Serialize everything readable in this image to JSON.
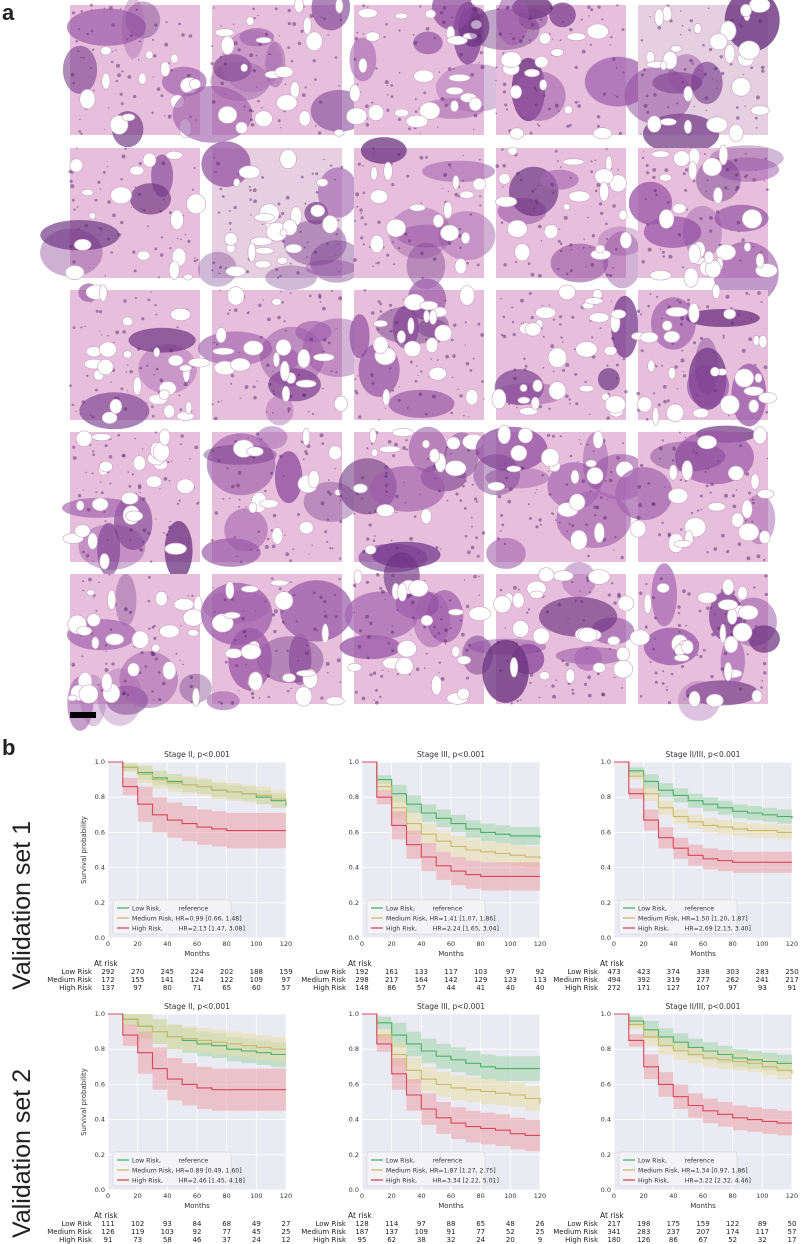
{
  "figure": {
    "panel_a_label": "a",
    "panel_b_label": "b",
    "row_labels": [
      "Validation set 1",
      "Validation set 2"
    ],
    "at_risk_label": "At risk",
    "group_labels": [
      "Low Risk",
      "Medium Risk",
      "High Risk"
    ],
    "colors": {
      "low": "#4daf6b",
      "medium": "#c9b96a",
      "high": "#d9475a",
      "low_band": "#9fd3a9",
      "medium_band": "#e8dcaa",
      "high_band": "#eba0a8",
      "plot_bg": "#eaeaf2"
    }
  },
  "tiles": {
    "count": 25,
    "description_icon": "histology-tile-icon"
  },
  "chart_data": [
    {
      "type": "line",
      "title": "Stage II, p<0.001",
      "xlabel": "Months",
      "ylabel": "Survival probability",
      "xlim": [
        0,
        120
      ],
      "ylim": [
        0,
        1
      ],
      "xticks": [
        "0",
        "20",
        "40",
        "60",
        "80",
        "100",
        "120"
      ],
      "yticks": [
        "0.0",
        "0.2",
        "0.4",
        "0.6",
        "0.8",
        "1.0"
      ],
      "legend": [
        "Low Risk,         reference",
        "Medium Risk, HR=0.99 [0.66, 1.48]",
        "High Risk,        HR=2.13 [1.47, 3.08]"
      ],
      "series": [
        {
          "name": "Low Risk",
          "x": [
            0,
            10,
            20,
            30,
            40,
            50,
            60,
            70,
            80,
            90,
            100,
            110,
            120
          ],
          "y": [
            1,
            0.97,
            0.94,
            0.91,
            0.89,
            0.87,
            0.86,
            0.84,
            0.83,
            0.82,
            0.8,
            0.78,
            0.75
          ],
          "band": 0.04
        },
        {
          "name": "Medium Risk",
          "x": [
            0,
            10,
            20,
            30,
            40,
            50,
            60,
            70,
            80,
            90,
            100,
            110,
            120
          ],
          "y": [
            1,
            0.97,
            0.93,
            0.9,
            0.88,
            0.87,
            0.86,
            0.84,
            0.83,
            0.82,
            0.81,
            0.79,
            0.77
          ],
          "band": 0.05
        },
        {
          "name": "High Risk",
          "x": [
            0,
            10,
            20,
            30,
            40,
            50,
            60,
            70,
            80,
            90,
            100,
            110,
            120
          ],
          "y": [
            1,
            0.86,
            0.76,
            0.7,
            0.67,
            0.65,
            0.63,
            0.62,
            0.61,
            0.61,
            0.61,
            0.61,
            0.61
          ],
          "band": 0.1
        }
      ],
      "at_risk": {
        "times": [
          0,
          20,
          40,
          60,
          80,
          100,
          120
        ],
        "rows": [
          [
            292,
            270,
            245,
            224,
            202,
            188,
            159
          ],
          [
            172,
            155,
            141,
            124,
            122,
            109,
            97
          ],
          [
            137,
            97,
            80,
            71,
            65,
            60,
            57
          ]
        ]
      }
    },
    {
      "type": "line",
      "title": "Stage III, p<0.001",
      "xlabel": "Months",
      "ylabel": "",
      "xlim": [
        0,
        120
      ],
      "ylim": [
        0,
        1
      ],
      "xticks": [
        "0",
        "20",
        "40",
        "60",
        "80",
        "100",
        "120"
      ],
      "yticks": [
        "0.0",
        "0.2",
        "0.4",
        "0.6",
        "0.8",
        "1.0"
      ],
      "legend": [
        "Low Risk,         reference",
        "Medium Risk, HR=1.41 [1.07, 1.86]",
        "High Risk,        HR=2.24 [1.65, 3.04]"
      ],
      "series": [
        {
          "name": "Low Risk",
          "x": [
            0,
            10,
            20,
            30,
            40,
            50,
            60,
            70,
            80,
            90,
            100,
            110,
            120
          ],
          "y": [
            1,
            0.9,
            0.82,
            0.76,
            0.71,
            0.68,
            0.65,
            0.62,
            0.6,
            0.59,
            0.58,
            0.58,
            0.57
          ],
          "band": 0.05
        },
        {
          "name": "Medium Risk",
          "x": [
            0,
            10,
            20,
            30,
            40,
            50,
            60,
            70,
            80,
            90,
            100,
            110,
            120
          ],
          "y": [
            1,
            0.86,
            0.74,
            0.65,
            0.59,
            0.55,
            0.52,
            0.5,
            0.49,
            0.48,
            0.47,
            0.46,
            0.45
          ],
          "band": 0.06
        },
        {
          "name": "High Risk",
          "x": [
            0,
            10,
            20,
            30,
            40,
            50,
            60,
            70,
            80,
            90,
            100,
            110,
            120
          ],
          "y": [
            1,
            0.8,
            0.64,
            0.53,
            0.46,
            0.41,
            0.38,
            0.36,
            0.35,
            0.35,
            0.35,
            0.35,
            0.35
          ],
          "band": 0.08
        }
      ],
      "at_risk": {
        "times": [
          0,
          20,
          40,
          60,
          80,
          100,
          120
        ],
        "rows": [
          [
            192,
            161,
            133,
            117,
            103,
            97,
            92
          ],
          [
            298,
            217,
            164,
            142,
            129,
            123,
            113
          ],
          [
            148,
            86,
            57,
            44,
            41,
            40,
            40
          ]
        ]
      }
    },
    {
      "type": "line",
      "title": "Stage II/III, p<0.001",
      "xlabel": "Months",
      "ylabel": "",
      "xlim": [
        0,
        120
      ],
      "ylim": [
        0,
        1
      ],
      "xticks": [
        "0",
        "20",
        "40",
        "60",
        "80",
        "100",
        "120"
      ],
      "yticks": [
        "0.0",
        "0.2",
        "0.4",
        "0.6",
        "0.8",
        "1.0"
      ],
      "legend": [
        "Low Risk,         reference",
        "Medium Risk, HR=1.50 [1.20, 1.87]",
        "High Risk,        HR=2.69 [2.13, 3.40]"
      ],
      "series": [
        {
          "name": "Low Risk",
          "x": [
            0,
            10,
            20,
            30,
            40,
            50,
            60,
            70,
            80,
            90,
            100,
            110,
            120
          ],
          "y": [
            1,
            0.95,
            0.89,
            0.84,
            0.81,
            0.78,
            0.76,
            0.74,
            0.72,
            0.71,
            0.7,
            0.69,
            0.68
          ],
          "band": 0.04
        },
        {
          "name": "Medium Risk",
          "x": [
            0,
            10,
            20,
            30,
            40,
            50,
            60,
            70,
            80,
            90,
            100,
            110,
            120
          ],
          "y": [
            1,
            0.92,
            0.82,
            0.74,
            0.69,
            0.66,
            0.64,
            0.63,
            0.62,
            0.61,
            0.61,
            0.6,
            0.6
          ],
          "band": 0.04
        },
        {
          "name": "High Risk",
          "x": [
            0,
            10,
            20,
            30,
            40,
            50,
            60,
            70,
            80,
            90,
            100,
            110,
            120
          ],
          "y": [
            1,
            0.82,
            0.67,
            0.57,
            0.51,
            0.47,
            0.45,
            0.44,
            0.43,
            0.43,
            0.43,
            0.43,
            0.43
          ],
          "band": 0.06
        }
      ],
      "at_risk": {
        "times": [
          0,
          20,
          40,
          60,
          80,
          100,
          120
        ],
        "rows": [
          [
            473,
            423,
            374,
            338,
            303,
            283,
            250
          ],
          [
            494,
            392,
            319,
            277,
            262,
            241,
            217
          ],
          [
            272,
            171,
            127,
            107,
            97,
            93,
            91
          ]
        ]
      }
    },
    {
      "type": "line",
      "title": "Stage II, p<0.001",
      "xlabel": "Months",
      "ylabel": "Survival probability",
      "xlim": [
        0,
        120
      ],
      "ylim": [
        0,
        1
      ],
      "xticks": [
        "0",
        "20",
        "40",
        "60",
        "80",
        "100",
        "120"
      ],
      "yticks": [
        "0.0",
        "0.2",
        "0.4",
        "0.6",
        "0.8",
        "1.0"
      ],
      "legend": [
        "Low Risk,         reference",
        "Medium Risk, HR=0.89 [0.49, 1.60]",
        "High Risk,        HR=2.46 [1.45, 4.18]"
      ],
      "series": [
        {
          "name": "Low Risk",
          "x": [
            0,
            10,
            20,
            30,
            40,
            50,
            60,
            70,
            80,
            90,
            100,
            110,
            120
          ],
          "y": [
            1,
            0.97,
            0.93,
            0.9,
            0.87,
            0.85,
            0.83,
            0.82,
            0.8,
            0.79,
            0.78,
            0.77,
            0.77
          ],
          "band": 0.07
        },
        {
          "name": "Medium Risk",
          "x": [
            0,
            10,
            20,
            30,
            40,
            50,
            60,
            70,
            80,
            90,
            100,
            110,
            120
          ],
          "y": [
            1,
            0.97,
            0.93,
            0.9,
            0.87,
            0.86,
            0.85,
            0.84,
            0.83,
            0.82,
            0.81,
            0.8,
            0.8
          ],
          "band": 0.07
        },
        {
          "name": "High Risk",
          "x": [
            0,
            10,
            20,
            30,
            40,
            50,
            60,
            70,
            80,
            90,
            100,
            110,
            120
          ],
          "y": [
            1,
            0.88,
            0.78,
            0.69,
            0.63,
            0.6,
            0.58,
            0.57,
            0.57,
            0.57,
            0.57,
            0.57,
            0.57
          ],
          "band": 0.12
        }
      ],
      "at_risk": {
        "times": [
          0,
          20,
          40,
          60,
          80,
          100,
          120
        ],
        "rows": [
          [
            111,
            102,
            93,
            84,
            68,
            49,
            27
          ],
          [
            126,
            119,
            103,
            92,
            77,
            45,
            25
          ],
          [
            91,
            73,
            58,
            46,
            37,
            24,
            12
          ]
        ]
      }
    },
    {
      "type": "line",
      "title": "Stage III, p<0.001",
      "xlabel": "Months",
      "ylabel": "",
      "xlim": [
        0,
        120
      ],
      "ylim": [
        0,
        1
      ],
      "xticks": [
        "0",
        "20",
        "40",
        "60",
        "80",
        "100",
        "120"
      ],
      "yticks": [
        "0.0",
        "0.2",
        "0.4",
        "0.6",
        "0.8",
        "1.0"
      ],
      "legend": [
        "Low Risk,         reference",
        "Medium Risk, HR=1.87 [1.27, 2.75]",
        "High Risk,        HR=3.34 [2.22, 5.01]"
      ],
      "series": [
        {
          "name": "Low Risk",
          "x": [
            0,
            10,
            20,
            30,
            40,
            50,
            60,
            70,
            80,
            90,
            100,
            110,
            120
          ],
          "y": [
            1,
            0.95,
            0.88,
            0.83,
            0.79,
            0.76,
            0.74,
            0.72,
            0.7,
            0.69,
            0.69,
            0.69,
            0.69
          ],
          "band": 0.07
        },
        {
          "name": "Medium Risk",
          "x": [
            0,
            10,
            20,
            30,
            40,
            50,
            60,
            70,
            80,
            90,
            100,
            110,
            120
          ],
          "y": [
            1,
            0.88,
            0.77,
            0.68,
            0.63,
            0.6,
            0.58,
            0.57,
            0.56,
            0.55,
            0.54,
            0.52,
            0.49
          ],
          "band": 0.07
        },
        {
          "name": "High Risk",
          "x": [
            0,
            10,
            20,
            30,
            40,
            50,
            60,
            70,
            80,
            90,
            100,
            110,
            120
          ],
          "y": [
            1,
            0.83,
            0.66,
            0.54,
            0.46,
            0.41,
            0.38,
            0.36,
            0.35,
            0.34,
            0.32,
            0.31,
            0.31
          ],
          "band": 0.09
        }
      ],
      "at_risk": {
        "times": [
          0,
          20,
          40,
          60,
          80,
          100,
          120
        ],
        "rows": [
          [
            128,
            114,
            97,
            88,
            65,
            48,
            26
          ],
          [
            187,
            137,
            109,
            91,
            77,
            52,
            25
          ],
          [
            95,
            62,
            38,
            32,
            24,
            20,
            9
          ]
        ]
      }
    },
    {
      "type": "line",
      "title": "Stage II/III, p<0.001",
      "xlabel": "Months",
      "ylabel": "",
      "xlim": [
        0,
        120
      ],
      "ylim": [
        0,
        1
      ],
      "xticks": [
        "0",
        "20",
        "40",
        "60",
        "80",
        "100",
        "120"
      ],
      "yticks": [
        "0.0",
        "0.2",
        "0.4",
        "0.6",
        "0.8",
        "1.0"
      ],
      "legend": [
        "Low Risk,         reference",
        "Medium Risk, HR=1.34 [0.97, 1.86]",
        "High Risk,        HR=3.22 [2.32, 4.46]"
      ],
      "series": [
        {
          "name": "Low Risk",
          "x": [
            0,
            10,
            20,
            30,
            40,
            50,
            60,
            70,
            80,
            90,
            100,
            110,
            120
          ],
          "y": [
            1,
            0.96,
            0.91,
            0.87,
            0.84,
            0.81,
            0.79,
            0.77,
            0.75,
            0.74,
            0.73,
            0.72,
            0.72
          ],
          "band": 0.05
        },
        {
          "name": "Medium Risk",
          "x": [
            0,
            10,
            20,
            30,
            40,
            50,
            60,
            70,
            80,
            90,
            100,
            110,
            120
          ],
          "y": [
            1,
            0.94,
            0.87,
            0.82,
            0.79,
            0.77,
            0.75,
            0.74,
            0.73,
            0.72,
            0.7,
            0.68,
            0.66
          ],
          "band": 0.05
        },
        {
          "name": "High Risk",
          "x": [
            0,
            10,
            20,
            30,
            40,
            50,
            60,
            70,
            80,
            90,
            100,
            110,
            120
          ],
          "y": [
            1,
            0.85,
            0.7,
            0.6,
            0.53,
            0.48,
            0.45,
            0.43,
            0.41,
            0.4,
            0.39,
            0.38,
            0.38
          ],
          "band": 0.07
        }
      ],
      "at_risk": {
        "times": [
          0,
          20,
          40,
          60,
          80,
          100,
          120
        ],
        "rows": [
          [
            217,
            198,
            175,
            159,
            122,
            89,
            50
          ],
          [
            341,
            283,
            237,
            207,
            174,
            117,
            57
          ],
          [
            180,
            126,
            86,
            67,
            52,
            32,
            17
          ]
        ]
      }
    }
  ]
}
